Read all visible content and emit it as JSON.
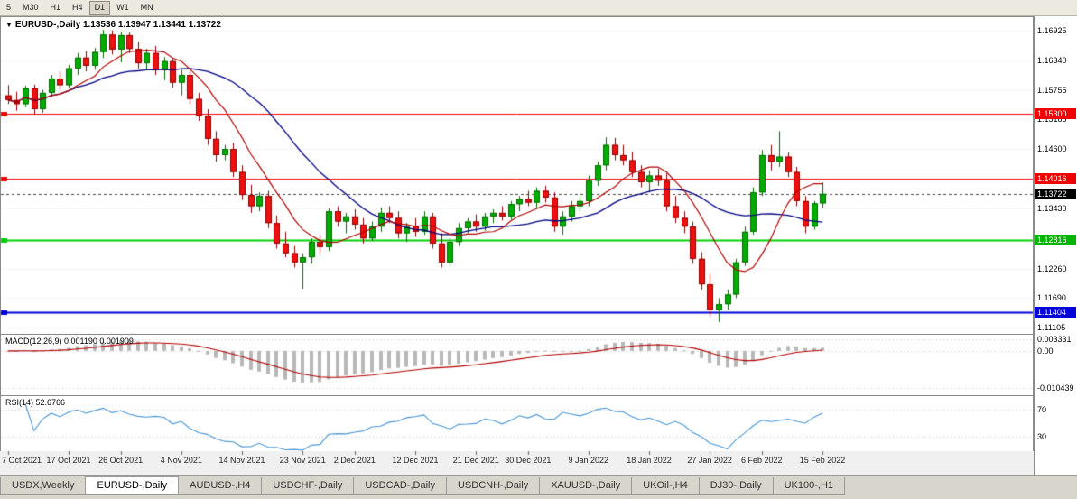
{
  "toolbar": {
    "items": [
      "5",
      "M30",
      "H1",
      "H4",
      "D1",
      "W1",
      "MN"
    ],
    "active": "D1"
  },
  "chart_header": {
    "caret": "▼",
    "symbol": "EURUSD-,Daily",
    "quote": "1.13536 1.13947 1.13441 1.13722"
  },
  "price_axis": {
    "ticks": [
      1.16925,
      1.1634,
      1.15755,
      1.15185,
      1.146,
      1.1343,
      1.1226,
      1.1169,
      1.11105
    ],
    "badges": [
      {
        "price": 1.153,
        "label": "1.15300",
        "bg": "#f00000"
      },
      {
        "price": 1.14016,
        "label": "1.14016",
        "bg": "#f00000"
      },
      {
        "price": 1.13722,
        "label": "1.13722",
        "bg": "#000000"
      },
      {
        "price": 1.12816,
        "label": "1.12816",
        "bg": "#00b400"
      },
      {
        "price": 1.11404,
        "label": "1.11404",
        "bg": "#0000d8"
      }
    ]
  },
  "indicator_axis": {
    "macd": [
      {
        "v": 0.003331,
        "label": "0.003331"
      },
      {
        "v": 0,
        "label": "0.00"
      },
      {
        "v": -0.010439,
        "label": "-0.010439"
      }
    ],
    "rsi": [
      {
        "v": 70,
        "label": "70"
      },
      {
        "v": 30,
        "label": "30"
      }
    ]
  },
  "tabs": {
    "items": [
      "USDX,Weekly",
      "EURUSD-,Daily",
      "AUDUSD-,H4",
      "USDCHF-,Daily",
      "USDCAD-,Daily",
      "USDCNH-,Daily",
      "XAUUSD-,Daily",
      "UKOil-,H4",
      "DJ30-,Daily",
      "UK100-,H1"
    ],
    "active": "EURUSD-,Daily"
  },
  "chart_data": [
    {
      "type": "candlestick",
      "symbol": "EURUSD-",
      "timeframe": "Daily",
      "title": "EURUSD-,Daily",
      "x_labels": [
        "7 Oct 2021",
        "17 Oct 2021",
        "26 Oct 2021",
        "4 Nov 2021",
        "14 Nov 2021",
        "23 Nov 2021",
        "2 Dec 2021",
        "12 Dec 2021",
        "21 Dec 2021",
        "30 Dec 2021",
        "9 Jan 2022",
        "18 Jan 2022",
        "27 Jan 2022",
        "6 Feb 2022",
        "15 Feb 2022"
      ],
      "x_label_indices": [
        0,
        7,
        13,
        20,
        27,
        34,
        40,
        47,
        54,
        60,
        67,
        74,
        81,
        87,
        94
      ],
      "ylim": [
        1.1098,
        1.172
      ],
      "last_quote": {
        "open": 1.13536,
        "high": 1.13947,
        "low": 1.13441,
        "close": 1.13722
      },
      "hlines": [
        {
          "price": 1.153,
          "color": "#f00000",
          "width": 1
        },
        {
          "price": 1.14016,
          "color": "#f00000",
          "width": 1
        },
        {
          "price": 1.12816,
          "color": "#00d000",
          "width": 2
        },
        {
          "price": 1.11404,
          "color": "#0000d8",
          "width": 2
        }
      ],
      "current_price_line": {
        "price": 1.13722,
        "color": "#444444",
        "style": "dashed"
      },
      "overlays": [
        {
          "name": "ma-slow",
          "period": 20,
          "color": "#000080"
        },
        {
          "name": "ma-fast",
          "period": 8,
          "color": "#b00000"
        }
      ],
      "colors": {
        "bull": "#00ad00",
        "bear": "#ef1010",
        "bull_border": "#006b00",
        "bear_border": "#8f0000"
      },
      "ohlc": [
        [
          1.1565,
          1.1585,
          1.1548,
          1.1556
        ],
        [
          1.1556,
          1.1572,
          1.1535,
          1.1548
        ],
        [
          1.1548,
          1.1584,
          1.1542,
          1.1579
        ],
        [
          1.1579,
          1.1586,
          1.1528,
          1.1538
        ],
        [
          1.1538,
          1.1576,
          1.1531,
          1.157
        ],
        [
          1.157,
          1.1605,
          1.1562,
          1.1598
        ],
        [
          1.1598,
          1.1612,
          1.1576,
          1.1585
        ],
        [
          1.1585,
          1.1625,
          1.158,
          1.1618
        ],
        [
          1.1618,
          1.1648,
          1.1605,
          1.1639
        ],
        [
          1.1639,
          1.1652,
          1.1612,
          1.1623
        ],
        [
          1.1623,
          1.1658,
          1.1615,
          1.165
        ],
        [
          1.165,
          1.1693,
          1.1638,
          1.1684
        ],
        [
          1.1684,
          1.16925,
          1.1645,
          1.1655
        ],
        [
          1.1655,
          1.169,
          1.163,
          1.1683
        ],
        [
          1.1683,
          1.1688,
          1.1648,
          1.1656
        ],
        [
          1.1656,
          1.167,
          1.1618,
          1.1628
        ],
        [
          1.1628,
          1.1656,
          1.1615,
          1.1648
        ],
        [
          1.1648,
          1.1662,
          1.1605,
          1.1614
        ],
        [
          1.1614,
          1.164,
          1.1595,
          1.1632
        ],
        [
          1.1632,
          1.1638,
          1.158,
          1.159
        ],
        [
          1.159,
          1.1615,
          1.1565,
          1.1605
        ],
        [
          1.1605,
          1.1612,
          1.1548,
          1.1558
        ],
        [
          1.1558,
          1.157,
          1.1515,
          1.1525
        ],
        [
          1.1525,
          1.1538,
          1.1468,
          1.148
        ],
        [
          1.148,
          1.1495,
          1.1435,
          1.1448
        ],
        [
          1.1448,
          1.1468,
          1.1438,
          1.146
        ],
        [
          1.146,
          1.1472,
          1.1405,
          1.1415
        ],
        [
          1.1415,
          1.1428,
          1.136,
          1.137
        ],
        [
          1.137,
          1.139,
          1.1335,
          1.1348
        ],
        [
          1.1348,
          1.1375,
          1.1338,
          1.1368
        ],
        [
          1.1368,
          1.1378,
          1.1305,
          1.1315
        ],
        [
          1.1315,
          1.133,
          1.1265,
          1.1275
        ],
        [
          1.1275,
          1.1298,
          1.1248,
          1.1256
        ],
        [
          1.1256,
          1.127,
          1.1228,
          1.1238
        ],
        [
          1.1238,
          1.1256,
          1.1186,
          1.1248
        ],
        [
          1.1248,
          1.1285,
          1.1235,
          1.1278
        ],
        [
          1.1278,
          1.1292,
          1.1255,
          1.1268
        ],
        [
          1.1268,
          1.1344,
          1.126,
          1.1338
        ],
        [
          1.1338,
          1.1348,
          1.1308,
          1.1318
        ],
        [
          1.1318,
          1.1335,
          1.1295,
          1.1328
        ],
        [
          1.1328,
          1.1342,
          1.1302,
          1.1312
        ],
        [
          1.1312,
          1.1325,
          1.1275,
          1.1285
        ],
        [
          1.1285,
          1.1318,
          1.128,
          1.1308
        ],
        [
          1.1308,
          1.1345,
          1.1298,
          1.1335
        ],
        [
          1.1335,
          1.1348,
          1.1315,
          1.1325
        ],
        [
          1.1325,
          1.1338,
          1.1285,
          1.1295
        ],
        [
          1.1295,
          1.1315,
          1.1278,
          1.1308
        ],
        [
          1.1308,
          1.1325,
          1.1288,
          1.1298
        ],
        [
          1.1298,
          1.1338,
          1.1292,
          1.1328
        ],
        [
          1.1328,
          1.1335,
          1.1265,
          1.1275
        ],
        [
          1.1275,
          1.1295,
          1.1228,
          1.1238
        ],
        [
          1.1238,
          1.1285,
          1.1232,
          1.1278
        ],
        [
          1.1278,
          1.1315,
          1.127,
          1.1305
        ],
        [
          1.1305,
          1.1325,
          1.1295,
          1.1318
        ],
        [
          1.1318,
          1.1332,
          1.1298,
          1.1308
        ],
        [
          1.1308,
          1.1335,
          1.13,
          1.1328
        ],
        [
          1.1328,
          1.1342,
          1.1315,
          1.1335
        ],
        [
          1.1335,
          1.1348,
          1.132,
          1.1328
        ],
        [
          1.1328,
          1.1358,
          1.1322,
          1.1352
        ],
        [
          1.1352,
          1.1368,
          1.1338,
          1.1362
        ],
        [
          1.1362,
          1.1378,
          1.1348,
          1.1355
        ],
        [
          1.1355,
          1.1385,
          1.1345,
          1.1378
        ],
        [
          1.1378,
          1.1388,
          1.1355,
          1.1365
        ],
        [
          1.1365,
          1.1375,
          1.1298,
          1.1308
        ],
        [
          1.1308,
          1.1338,
          1.1292,
          1.1328
        ],
        [
          1.1328,
          1.1358,
          1.1318,
          1.1348
        ],
        [
          1.1348,
          1.1368,
          1.1338,
          1.1358
        ],
        [
          1.1358,
          1.1408,
          1.1348,
          1.1398
        ],
        [
          1.1398,
          1.1435,
          1.1388,
          1.1428
        ],
        [
          1.1428,
          1.1483,
          1.1418,
          1.1468
        ],
        [
          1.1468,
          1.1482,
          1.1438,
          1.1448
        ],
        [
          1.1448,
          1.1468,
          1.1428,
          1.1438
        ],
        [
          1.1438,
          1.1455,
          1.1405,
          1.1415
        ],
        [
          1.1415,
          1.1428,
          1.1385,
          1.1395
        ],
        [
          1.1395,
          1.1418,
          1.1375,
          1.1408
        ],
        [
          1.1408,
          1.1422,
          1.1388,
          1.1398
        ],
        [
          1.1398,
          1.1412,
          1.1338,
          1.1348
        ],
        [
          1.1348,
          1.1368,
          1.1315,
          1.1325
        ],
        [
          1.1325,
          1.1338,
          1.1295,
          1.1308
        ],
        [
          1.1308,
          1.1318,
          1.1235,
          1.1245
        ],
        [
          1.1245,
          1.1258,
          1.1185,
          1.1195
        ],
        [
          1.1195,
          1.1215,
          1.1132,
          1.1145
        ],
        [
          1.1145,
          1.1168,
          1.1121,
          1.1156
        ],
        [
          1.1156,
          1.1185,
          1.1145,
          1.1175
        ],
        [
          1.1175,
          1.1245,
          1.1168,
          1.1238
        ],
        [
          1.1238,
          1.1308,
          1.1231,
          1.1298
        ],
        [
          1.1298,
          1.1385,
          1.1292,
          1.1375
        ],
        [
          1.1375,
          1.1458,
          1.1368,
          1.1448
        ],
        [
          1.1448,
          1.1468,
          1.1418,
          1.1435
        ],
        [
          1.1435,
          1.1495,
          1.1425,
          1.1445
        ],
        [
          1.1445,
          1.1453,
          1.1405,
          1.1415
        ],
        [
          1.1415,
          1.1425,
          1.1348,
          1.1358
        ],
        [
          1.1358,
          1.1368,
          1.1295,
          1.1308
        ],
        [
          1.1308,
          1.1358,
          1.1302,
          1.13536
        ],
        [
          1.13536,
          1.13947,
          1.13441,
          1.13722
        ]
      ]
    },
    {
      "type": "macd",
      "label": "MACD(12,26,9) 0.001190 0.001909",
      "params": {
        "fast": 12,
        "slow": 26,
        "signal": 9
      },
      "current_macd": 0.00119,
      "current_signal": 0.001909,
      "ylim": [
        -0.0125,
        0.0048
      ],
      "colors": {
        "histogram": "#b8b8b8",
        "signal": "#b00000"
      }
    },
    {
      "type": "rsi",
      "label": "RSI(14) 52.6766",
      "period": 14,
      "current": 52.6766,
      "levels": [
        70,
        30
      ],
      "ylim": [
        8,
        92
      ],
      "color": "#4a96d2"
    }
  ]
}
